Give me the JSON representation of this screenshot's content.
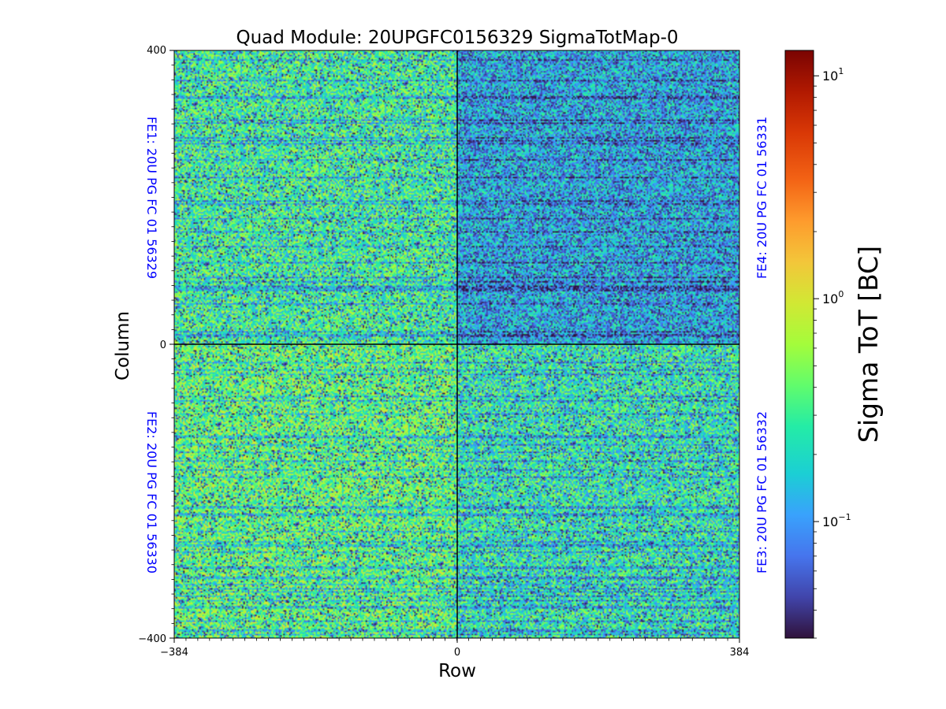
{
  "chart_data": {
    "type": "heatmap",
    "title": "Quad Module: 20UPGFC0156329 SigmaTotMap-0",
    "xlabel": "Row",
    "ylabel": "Column",
    "xlim": [
      -384,
      384
    ],
    "ylim": [
      -400,
      400
    ],
    "x_ticks": [
      "−384",
      "0",
      "384"
    ],
    "y_ticks": [
      "400",
      "0",
      "−400"
    ],
    "colorbar": {
      "label": "Sigma ToT [BC]",
      "scale": "log",
      "range": [
        0.03,
        13
      ],
      "colormap": "turbo",
      "ticks": [
        {
          "value": 0.1,
          "base": "10",
          "exp": "−1"
        },
        {
          "value": 1,
          "base": "10",
          "exp": "0"
        },
        {
          "value": 10,
          "base": "10",
          "exp": "1"
        }
      ]
    },
    "quadrants": [
      {
        "label": "FE1: 20U PG FC 01 56329",
        "position": "top-left",
        "typical_sigma": 0.3
      },
      {
        "label": "FE4: 20U PG FC 01 56331",
        "position": "top-right",
        "typical_sigma": 0.12
      },
      {
        "label": "FE2: 20U PG FC 01 56330",
        "position": "bottom-left",
        "typical_sigma": 0.4
      },
      {
        "label": "FE3: 20U PG FC 01 56332",
        "position": "bottom-right",
        "typical_sigma": 0.25
      }
    ],
    "label_color": "#0000ff"
  }
}
